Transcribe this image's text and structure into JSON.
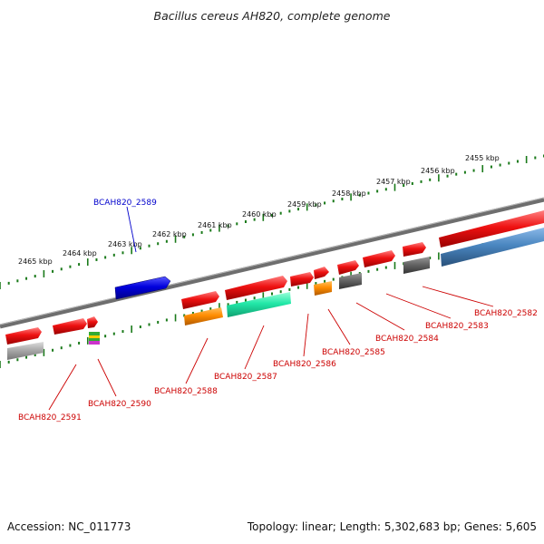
{
  "title": "Bacillus cereus AH820, complete genome",
  "footer": {
    "accession": "Accession: NC_011773",
    "summary": "Topology: linear; Length: 5,302,683 bp; Genes: 5,605"
  },
  "colors": {
    "backbone": "#777777",
    "ticks": "#1a7a1a",
    "highlight_label": "#0000cc",
    "gene_label": "#cc0000",
    "red": "#ee1111",
    "blue": "#0000dd",
    "orange": "#ff8c00",
    "teal": "#22e8a8",
    "dark_gray": "#666666",
    "light_gray": "#aaaaaa",
    "steel_blue": "#4a86c0"
  },
  "kbp_labels": [
    "2465 kbp",
    "2464 kbp",
    "2463 kbp",
    "2462 kbp",
    "2461 kbp",
    "2460 kbp",
    "2459 kbp",
    "2458 kbp",
    "2457 kbp",
    "2456 kbp",
    "2455 kbp"
  ],
  "gene_labels": {
    "BCAH820_2589": "BCAH820_2589",
    "BCAH820_2591": "BCAH820_2591",
    "BCAH820_2590": "BCAH820_2590",
    "BCAH820_2588": "BCAH820_2588",
    "BCAH820_2587": "BCAH820_2587",
    "BCAH820_2586": "BCAH820_2586",
    "BCAH820_2585": "BCAH820_2585",
    "BCAH820_2584": "BCAH820_2584",
    "BCAH820_2583": "BCAH820_2583",
    "BCAH820_2582": "BCAH820_2582"
  }
}
